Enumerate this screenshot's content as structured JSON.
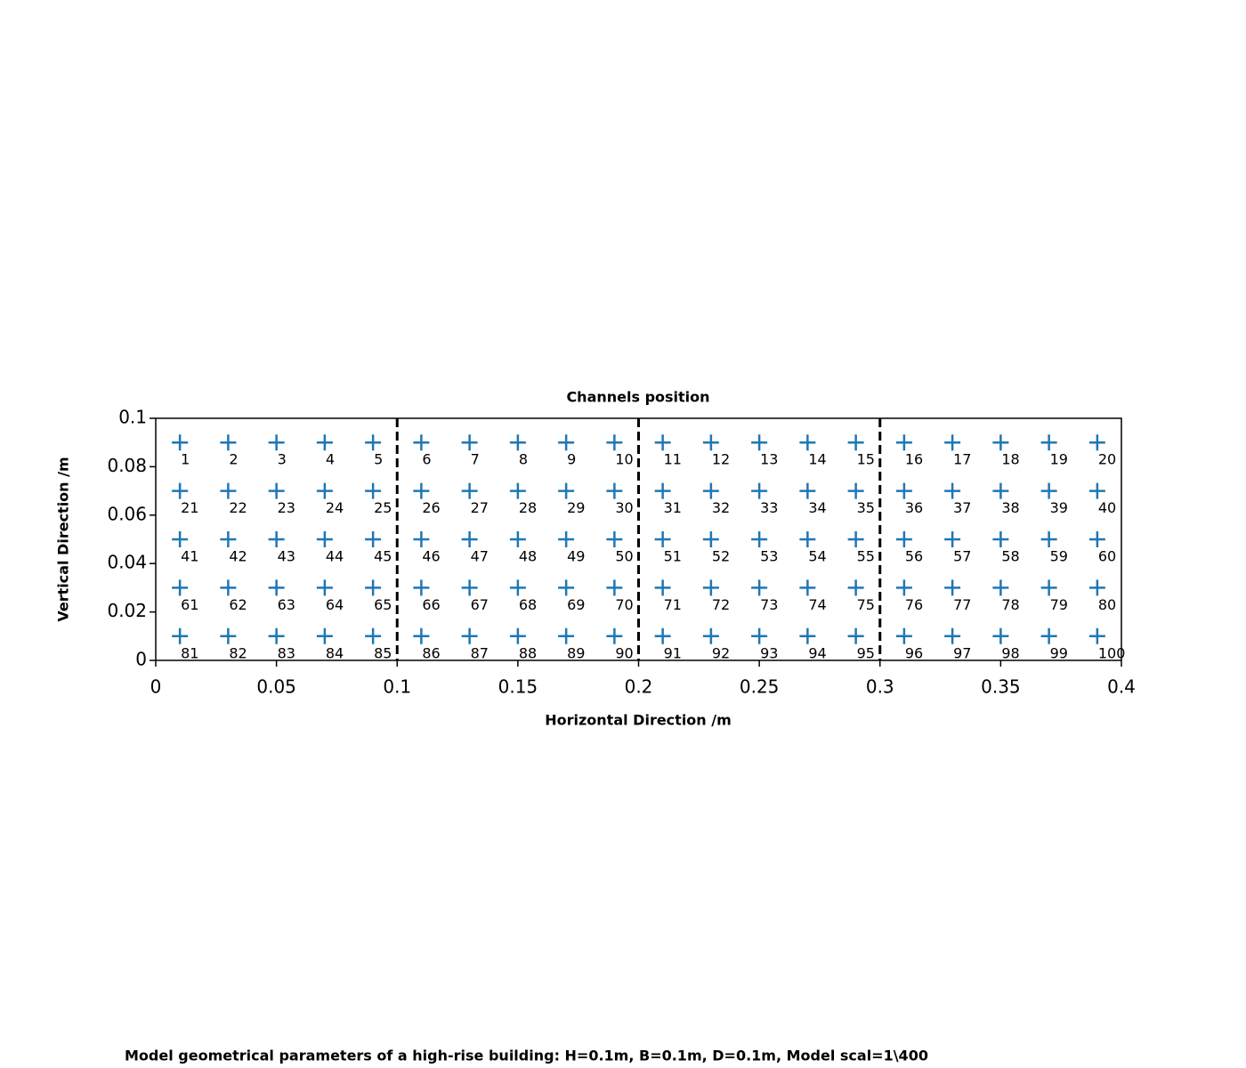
{
  "chart_data": {
    "type": "scatter",
    "title": "Channels position",
    "xlabel": "Horizontal Direction /m",
    "ylabel": "Vertical Direction /m",
    "xlim": [
      0,
      0.4
    ],
    "ylim": [
      0,
      0.1
    ],
    "xticks": [
      0,
      0.05,
      0.1,
      0.15,
      0.2,
      0.25,
      0.3,
      0.35,
      0.4
    ],
    "yticks": [
      0,
      0.02,
      0.04,
      0.06,
      0.08,
      0.1
    ],
    "vlines": [
      0.1,
      0.2,
      0.3
    ],
    "marker": "+",
    "series": [
      {
        "color": "#1f77b4",
        "x": [
          0.01,
          0.03,
          0.05,
          0.07,
          0.09,
          0.11,
          0.13,
          0.15,
          0.17,
          0.19,
          0.21,
          0.23,
          0.25,
          0.27,
          0.29,
          0.31,
          0.33,
          0.35,
          0.37,
          0.39,
          0.01,
          0.03,
          0.05,
          0.07,
          0.09,
          0.11,
          0.13,
          0.15,
          0.17,
          0.19,
          0.21,
          0.23,
          0.25,
          0.27,
          0.29,
          0.31,
          0.33,
          0.35,
          0.37,
          0.39,
          0.01,
          0.03,
          0.05,
          0.07,
          0.09,
          0.11,
          0.13,
          0.15,
          0.17,
          0.19,
          0.21,
          0.23,
          0.25,
          0.27,
          0.29,
          0.31,
          0.33,
          0.35,
          0.37,
          0.39,
          0.01,
          0.03,
          0.05,
          0.07,
          0.09,
          0.11,
          0.13,
          0.15,
          0.17,
          0.19,
          0.21,
          0.23,
          0.25,
          0.27,
          0.29,
          0.31,
          0.33,
          0.35,
          0.37,
          0.39,
          0.01,
          0.03,
          0.05,
          0.07,
          0.09,
          0.11,
          0.13,
          0.15,
          0.17,
          0.19,
          0.21,
          0.23,
          0.25,
          0.27,
          0.29,
          0.31,
          0.33,
          0.35,
          0.37,
          0.39
        ],
        "values": [
          0.09,
          0.09,
          0.09,
          0.09,
          0.09,
          0.09,
          0.09,
          0.09,
          0.09,
          0.09,
          0.09,
          0.09,
          0.09,
          0.09,
          0.09,
          0.09,
          0.09,
          0.09,
          0.09,
          0.09,
          0.07,
          0.07,
          0.07,
          0.07,
          0.07,
          0.07,
          0.07,
          0.07,
          0.07,
          0.07,
          0.07,
          0.07,
          0.07,
          0.07,
          0.07,
          0.07,
          0.07,
          0.07,
          0.07,
          0.07,
          0.05,
          0.05,
          0.05,
          0.05,
          0.05,
          0.05,
          0.05,
          0.05,
          0.05,
          0.05,
          0.05,
          0.05,
          0.05,
          0.05,
          0.05,
          0.05,
          0.05,
          0.05,
          0.05,
          0.05,
          0.03,
          0.03,
          0.03,
          0.03,
          0.03,
          0.03,
          0.03,
          0.03,
          0.03,
          0.03,
          0.03,
          0.03,
          0.03,
          0.03,
          0.03,
          0.03,
          0.03,
          0.03,
          0.03,
          0.03,
          0.01,
          0.01,
          0.01,
          0.01,
          0.01,
          0.01,
          0.01,
          0.01,
          0.01,
          0.01,
          0.01,
          0.01,
          0.01,
          0.01,
          0.01,
          0.01,
          0.01,
          0.01,
          0.01,
          0.01
        ],
        "labels": [
          "1",
          "2",
          "3",
          "4",
          "5",
          "6",
          "7",
          "8",
          "9",
          "10",
          "11",
          "12",
          "13",
          "14",
          "15",
          "16",
          "17",
          "18",
          "19",
          "20",
          "21",
          "22",
          "23",
          "24",
          "25",
          "26",
          "27",
          "28",
          "29",
          "30",
          "31",
          "32",
          "33",
          "34",
          "35",
          "36",
          "37",
          "38",
          "39",
          "40",
          "41",
          "42",
          "43",
          "44",
          "45",
          "46",
          "47",
          "48",
          "49",
          "50",
          "51",
          "52",
          "53",
          "54",
          "55",
          "56",
          "57",
          "58",
          "59",
          "60",
          "61",
          "62",
          "63",
          "64",
          "65",
          "66",
          "67",
          "68",
          "69",
          "70",
          "71",
          "72",
          "73",
          "74",
          "75",
          "76",
          "77",
          "78",
          "79",
          "80",
          "81",
          "82",
          "83",
          "84",
          "85",
          "86",
          "87",
          "88",
          "89",
          "90",
          "91",
          "92",
          "93",
          "94",
          "95",
          "96",
          "97",
          "98",
          "99",
          "100"
        ]
      }
    ],
    "footer": "Model geometrical parameters of a high-rise building: H=0.1m, B=0.1m, D=0.1m, Model scal=1\\400"
  }
}
